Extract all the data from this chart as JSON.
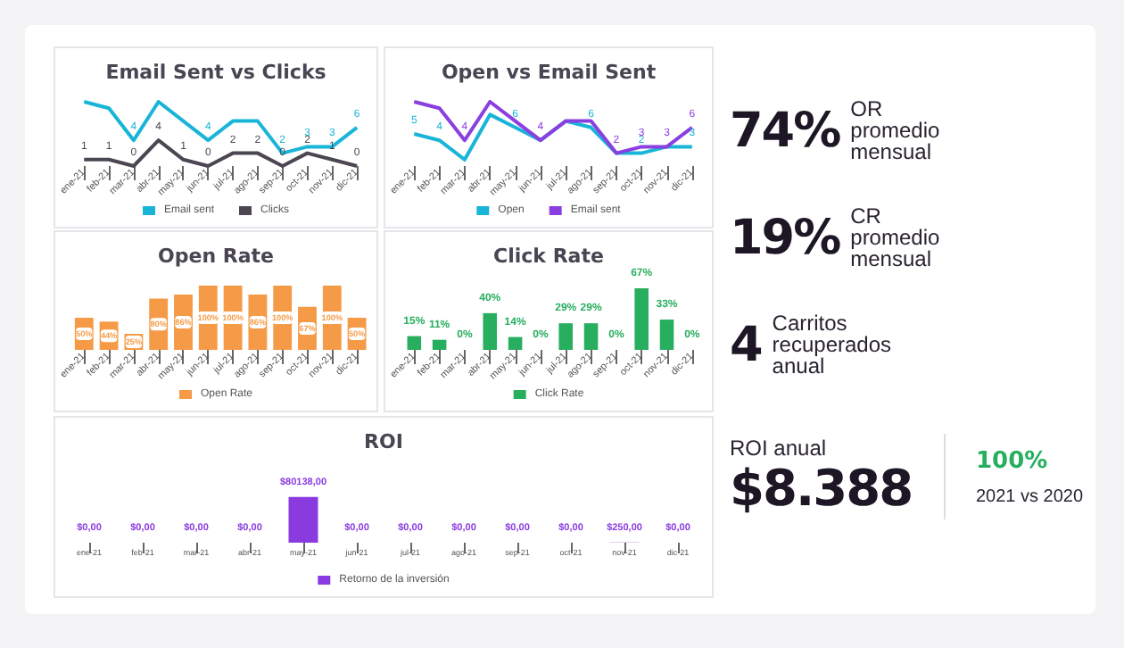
{
  "chart_data": [
    {
      "type": "line",
      "title": "Email Sent vs Clicks",
      "categories": [
        "ene-21",
        "feb-21",
        "mar-21",
        "abr-21",
        "may-21",
        "jun-21",
        "jul-21",
        "ago-21",
        "sep-21",
        "oct-21",
        "nov-21",
        "dic-21"
      ],
      "legend": "bottom",
      "marker": "none",
      "series": [
        {
          "name": "Email sent",
          "color": "#19b5d8",
          "values": [
            10,
            9,
            4,
            10,
            7,
            4,
            7,
            7,
            2,
            3,
            3,
            6
          ],
          "value_labels": [
            null,
            null,
            "4",
            null,
            null,
            "4",
            null,
            null,
            "2",
            "3",
            "3",
            "6"
          ]
        },
        {
          "name": "Clicks",
          "color": "#4b4652",
          "values": [
            1,
            1,
            0,
            4,
            1,
            0,
            2,
            2,
            0,
            2,
            1,
            0
          ],
          "value_labels": [
            "1",
            "1",
            "0",
            "4",
            "1",
            "0",
            "2",
            "2",
            "0",
            "2",
            "1",
            "0"
          ]
        }
      ]
    },
    {
      "type": "line",
      "title": "Open vs Email Sent",
      "categories": [
        "ene-21",
        "feb-21",
        "mar-21",
        "abr-21",
        "may-21",
        "jun-21",
        "jul-21",
        "ago-21",
        "sep-21",
        "oct-21",
        "nov-21",
        "dic-21"
      ],
      "legend": "bottom",
      "marker": "none",
      "series": [
        {
          "name": "Open",
          "color": "#19b5d8",
          "values": [
            5,
            4,
            1,
            8,
            6,
            4,
            7,
            6,
            2,
            2,
            3,
            3
          ],
          "value_labels": [
            "5",
            "4",
            null,
            null,
            "6",
            null,
            null,
            "6",
            null,
            "2",
            null,
            "3"
          ]
        },
        {
          "name": "Email sent",
          "color": "#8a3fe0",
          "values": [
            10,
            9,
            4,
            10,
            7,
            4,
            7,
            7,
            2,
            3,
            3,
            6
          ],
          "value_labels": [
            null,
            null,
            "4",
            null,
            null,
            "4",
            null,
            null,
            "2",
            "3",
            "3",
            "6"
          ]
        }
      ]
    },
    {
      "type": "bar",
      "title": "Open Rate",
      "categories": [
        "ene-21",
        "feb-21",
        "mar-21",
        "abr-21",
        "may-21",
        "jun-21",
        "jul-21",
        "ago-21",
        "sep-21",
        "oct-21",
        "nov-21",
        "dic-21"
      ],
      "legend": "bottom",
      "series": [
        {
          "name": "Open Rate",
          "color": "#f59b47",
          "values": [
            50,
            44,
            25,
            80,
            86,
            100,
            100,
            86,
            100,
            67,
            100,
            50
          ],
          "value_labels": [
            "50%",
            "44%",
            "25%",
            "80%",
            "86%",
            "100%",
            "100%",
            "86%",
            "100%",
            "67%",
            "100%",
            "50%"
          ]
        }
      ]
    },
    {
      "type": "bar",
      "title": "Click Rate",
      "categories": [
        "ene-21",
        "feb-21",
        "mar-21",
        "abr-21",
        "may-21",
        "jun-21",
        "jul-21",
        "ago-21",
        "sep-21",
        "oct-21",
        "nov-21",
        "dic-21"
      ],
      "legend": "bottom",
      "series": [
        {
          "name": "Click Rate",
          "color": "#27ae5f",
          "values": [
            15,
            11,
            0,
            40,
            14,
            0,
            29,
            29,
            0,
            67,
            33,
            0
          ],
          "value_labels": [
            "15%",
            "11%",
            "0%",
            "40%",
            "14%",
            "0%",
            "29%",
            "29%",
            "0%",
            "67%",
            "33%",
            "0%"
          ]
        }
      ]
    },
    {
      "type": "bar",
      "title": "ROI",
      "categories": [
        "ene-21",
        "feb-21",
        "mar-21",
        "abr-21",
        "may-21",
        "jun-21",
        "jul-21",
        "ago-21",
        "sep-21",
        "oct-21",
        "nov-21",
        "dic-21"
      ],
      "legend": "bottom",
      "series": [
        {
          "name": "Retorno de la inversión",
          "color": "#8a3be0",
          "values": [
            0,
            0,
            0,
            0,
            80138,
            0,
            0,
            0,
            0,
            0,
            250,
            0
          ],
          "value_labels": [
            "$0,00",
            "$0,00",
            "$0,00",
            "$0,00",
            "$80138,00",
            "$0,00",
            "$0,00",
            "$0,00",
            "$0,00",
            "$0,00",
            "$250,00",
            "$0,00"
          ]
        }
      ]
    },
    {
      "type": "other",
      "annotations": [
        "74%",
        "OR promedio mensual",
        "19%",
        "CR promedio mensual",
        "4",
        "Carritos recuperados anual",
        "ROI anual",
        "$8.388",
        "100%",
        "2021 vs 2020"
      ]
    }
  ]
}
